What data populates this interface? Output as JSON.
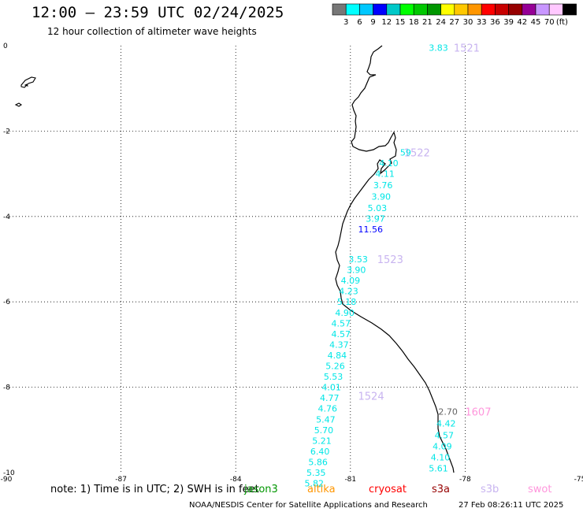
{
  "header": {
    "title": "12:00 — 23:59 UTC 02/24/2025",
    "subtitle": "12 hour collection of altimeter wave heights"
  },
  "color_scale": {
    "colors": [
      "#777777",
      "#00ffff",
      "#00c8ff",
      "#0000ff",
      "#00c8c8",
      "#00ff00",
      "#00c800",
      "#009600",
      "#ffff00",
      "#ffc800",
      "#ff9600",
      "#ff0000",
      "#c80000",
      "#960000",
      "#960096",
      "#c896ff",
      "#ffc8ff",
      "#000000"
    ],
    "labels": [
      "3",
      "6",
      "9",
      "12",
      "15",
      "18",
      "21",
      "24",
      "27",
      "30",
      "33",
      "36",
      "39",
      "42",
      "45",
      "70",
      "(ft)"
    ]
  },
  "map": {
    "x_ticks": [
      "-90",
      "-87",
      "-84",
      "-81",
      "-78",
      "-75"
    ],
    "y_ticks": [
      "0",
      "-2",
      "-4",
      "-6",
      "-8",
      "-10"
    ],
    "lon_range": [
      -90,
      -75
    ],
    "lat_range": [
      -10,
      0
    ]
  },
  "passes": [
    {
      "name": "1521",
      "color": "#c8b4f0",
      "lon": -78.3,
      "lat": -0.05,
      "font": 13
    },
    {
      "name": "1522",
      "color": "#c8b4f0",
      "lon": -79.6,
      "lat": -2.5,
      "font": 13
    },
    {
      "name": "1523",
      "color": "#c8b4f0",
      "lon": -80.3,
      "lat": -5.0,
      "font": 13
    },
    {
      "name": "1524",
      "color": "#c8b4f0",
      "lon": -80.8,
      "lat": -8.2,
      "font": 13
    },
    {
      "name": "1607",
      "color": "#ff96dc",
      "lon": -78.0,
      "lat": -8.57,
      "font": 13
    }
  ],
  "readings": [
    {
      "v": "3.83",
      "c": "#00e6e6",
      "lon": -78.95,
      "lat": -0.05
    },
    {
      "v": "59",
      "c": "#00e6e6",
      "lon": -79.7,
      "lat": -2.5
    },
    {
      "v": "4.10",
      "c": "#00e6e6",
      "lon": -80.25,
      "lat": -2.75
    },
    {
      "v": "4.11",
      "c": "#00e6e6",
      "lon": -80.35,
      "lat": -3.0
    },
    {
      "v": "3.76",
      "c": "#00e6e6",
      "lon": -80.4,
      "lat": -3.27
    },
    {
      "v": "3.90",
      "c": "#00e6e6",
      "lon": -80.45,
      "lat": -3.53
    },
    {
      "v": "5.03",
      "c": "#00e6e6",
      "lon": -80.55,
      "lat": -3.8
    },
    {
      "v": "3.97",
      "c": "#00e6e6",
      "lon": -80.6,
      "lat": -4.05
    },
    {
      "v": "11.56",
      "c": "#0000ff",
      "lon": -80.8,
      "lat": -4.3
    },
    {
      "v": "3.53",
      "c": "#00e6e6",
      "lon": -81.05,
      "lat": -5.0
    },
    {
      "v": "3.90",
      "c": "#00e6e6",
      "lon": -81.1,
      "lat": -5.25
    },
    {
      "v": "4.09",
      "c": "#00e6e6",
      "lon": -81.25,
      "lat": -5.5
    },
    {
      "v": "4.23",
      "c": "#00e6e6",
      "lon": -81.3,
      "lat": -5.75
    },
    {
      "v": "5.18",
      "c": "#00e6e6",
      "lon": -81.35,
      "lat": -6.0
    },
    {
      "v": "4.90",
      "c": "#00e6e6",
      "lon": -81.4,
      "lat": -6.25
    },
    {
      "v": "4.57",
      "c": "#00e6e6",
      "lon": -81.5,
      "lat": -6.5
    },
    {
      "v": "4.57",
      "c": "#00e6e6",
      "lon": -81.5,
      "lat": -6.75
    },
    {
      "v": "4.37",
      "c": "#00e6e6",
      "lon": -81.55,
      "lat": -7.0
    },
    {
      "v": "4.84",
      "c": "#00e6e6",
      "lon": -81.6,
      "lat": -7.25
    },
    {
      "v": "5.26",
      "c": "#00e6e6",
      "lon": -81.65,
      "lat": -7.5
    },
    {
      "v": "5.53",
      "c": "#00e6e6",
      "lon": -81.7,
      "lat": -7.75
    },
    {
      "v": "4.01",
      "c": "#00e6e6",
      "lon": -81.75,
      "lat": -8.0
    },
    {
      "v": "4.77",
      "c": "#00e6e6",
      "lon": -81.8,
      "lat": -8.25
    },
    {
      "v": "4.76",
      "c": "#00e6e6",
      "lon": -81.85,
      "lat": -8.5
    },
    {
      "v": "5.47",
      "c": "#00e6e6",
      "lon": -81.9,
      "lat": -8.75
    },
    {
      "v": "5.70",
      "c": "#00e6e6",
      "lon": -81.95,
      "lat": -9.0
    },
    {
      "v": "5.21",
      "c": "#00e6e6",
      "lon": -82.0,
      "lat": -9.25
    },
    {
      "v": "6.40",
      "c": "#00e6e6",
      "lon": -82.05,
      "lat": -9.5
    },
    {
      "v": "5.86",
      "c": "#00e6e6",
      "lon": -82.1,
      "lat": -9.75
    },
    {
      "v": "5.35",
      "c": "#00e6e6",
      "lon": -82.15,
      "lat": -10.0
    },
    {
      "v": "5.82",
      "c": "#00e6e6",
      "lon": -82.2,
      "lat": -10.25
    },
    {
      "v": "2.70",
      "c": "#646464",
      "lon": -78.7,
      "lat": -8.57
    },
    {
      "v": "4.42",
      "c": "#00e6e6",
      "lon": -78.75,
      "lat": -8.85
    },
    {
      "v": "4.57",
      "c": "#00e6e6",
      "lon": -78.8,
      "lat": -9.12
    },
    {
      "v": "4.09",
      "c": "#00e6e6",
      "lon": -78.85,
      "lat": -9.38
    },
    {
      "v": "4.10",
      "c": "#00e6e6",
      "lon": -78.9,
      "lat": -9.64
    },
    {
      "v": "5.61",
      "c": "#00e6e6",
      "lon": -78.95,
      "lat": -9.9
    }
  ],
  "footer": {
    "note": "note: 1) Time is in UTC; 2) SWH is in feet",
    "satellites": [
      {
        "name": "jason3",
        "color": "#009600"
      },
      {
        "name": "altika",
        "color": "#ff9600"
      },
      {
        "name": "cryosat",
        "color": "#ff0000"
      },
      {
        "name": "s3a",
        "color": "#960000"
      },
      {
        "name": "s3b",
        "color": "#c8b4f0"
      },
      {
        "name": "swot",
        "color": "#ff96dc"
      }
    ],
    "credit": "NOAA/NESDIS Center for Satellite Applications and Research",
    "timestamp": "27 Feb 08:26:11 UTC 2025"
  }
}
